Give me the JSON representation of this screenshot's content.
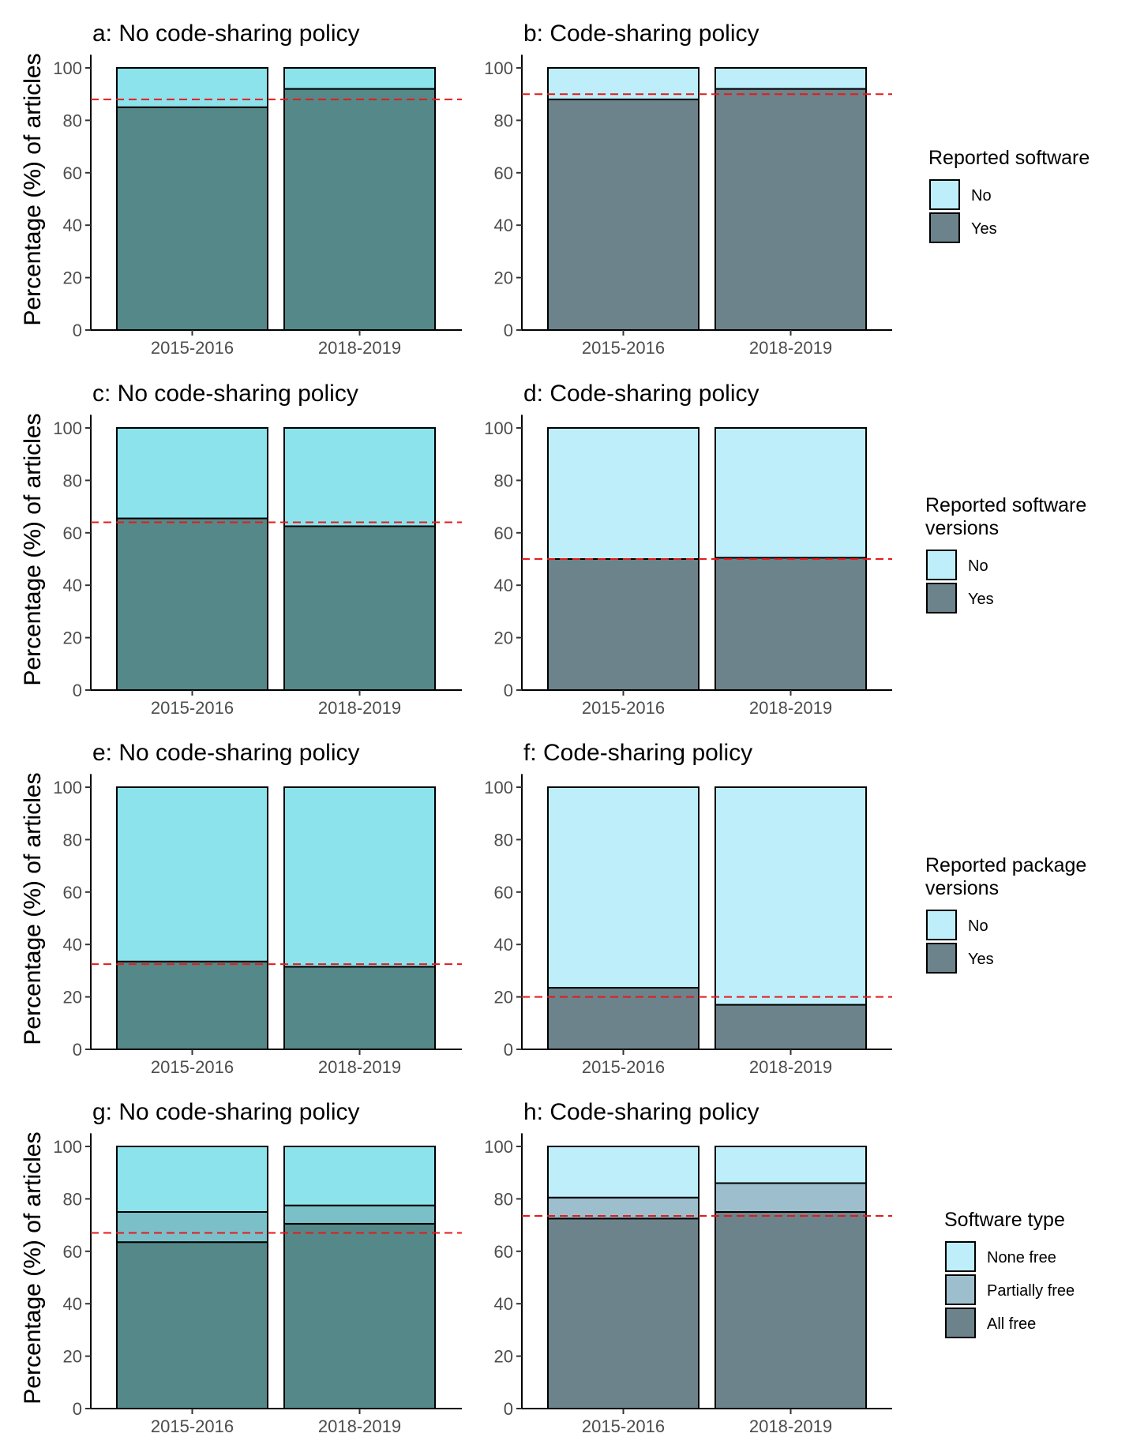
{
  "figure": {
    "ylabel": "Percentage (%) of articles",
    "categories": [
      "2015-2016",
      "2018-2019"
    ],
    "yticks": [
      0,
      20,
      40,
      60,
      80,
      100
    ]
  },
  "colors": {
    "no_policy_yes": "#558888",
    "no_policy_no": "#8de3ec",
    "policy_yes": "#6c838b",
    "policy_no": "#bfeefb",
    "no_policy_partial": "#7bbfc8",
    "policy_partial": "#9dbfcd",
    "reference_line": "#e41a1c",
    "bar_outline": "#000000"
  },
  "legends": [
    {
      "title_lines": [
        "Reported software"
      ],
      "items": [
        {
          "label": "No",
          "color": "#bfeefb"
        },
        {
          "label": "Yes",
          "color": "#6c838b"
        }
      ]
    },
    {
      "title_lines": [
        "Reported software",
        "versions"
      ],
      "items": [
        {
          "label": "No",
          "color": "#bfeefb"
        },
        {
          "label": "Yes",
          "color": "#6c838b"
        }
      ]
    },
    {
      "title_lines": [
        "Reported package",
        "versions"
      ],
      "items": [
        {
          "label": "No",
          "color": "#bfeefb"
        },
        {
          "label": "Yes",
          "color": "#6c838b"
        }
      ]
    },
    {
      "title_lines": [
        "Software type"
      ],
      "items": [
        {
          "label": "None free",
          "color": "#bfeefb"
        },
        {
          "label": "Partially free",
          "color": "#9dbfcd"
        },
        {
          "label": "All free",
          "color": "#6c838b"
        }
      ]
    }
  ],
  "chart_data": [
    {
      "panel": "a",
      "title": "a: No code-sharing policy",
      "type": "bar",
      "stacked": true,
      "categories": [
        "2015-2016",
        "2018-2019"
      ],
      "ylim": [
        0,
        100
      ],
      "reference_line": 88,
      "series": [
        {
          "name": "Yes",
          "values": [
            85,
            92
          ]
        },
        {
          "name": "No",
          "values": [
            15,
            8
          ]
        }
      ]
    },
    {
      "panel": "b",
      "title": "b: Code-sharing policy",
      "type": "bar",
      "stacked": true,
      "categories": [
        "2015-2016",
        "2018-2019"
      ],
      "ylim": [
        0,
        100
      ],
      "reference_line": 90,
      "series": [
        {
          "name": "Yes",
          "values": [
            88,
            92
          ]
        },
        {
          "name": "No",
          "values": [
            12,
            8
          ]
        }
      ]
    },
    {
      "panel": "c",
      "title": "c: No code-sharing policy",
      "type": "bar",
      "stacked": true,
      "categories": [
        "2015-2016",
        "2018-2019"
      ],
      "ylim": [
        0,
        100
      ],
      "reference_line": 64,
      "series": [
        {
          "name": "Yes",
          "values": [
            65.5,
            62.5
          ]
        },
        {
          "name": "No",
          "values": [
            34.5,
            37.5
          ]
        }
      ]
    },
    {
      "panel": "d",
      "title": "d: Code-sharing policy",
      "type": "bar",
      "stacked": true,
      "categories": [
        "2015-2016",
        "2018-2019"
      ],
      "ylim": [
        0,
        100
      ],
      "reference_line": 50,
      "series": [
        {
          "name": "Yes",
          "values": [
            50,
            50.5
          ]
        },
        {
          "name": "No",
          "values": [
            50,
            49.5
          ]
        }
      ]
    },
    {
      "panel": "e",
      "title": "e: No code-sharing policy",
      "type": "bar",
      "stacked": true,
      "categories": [
        "2015-2016",
        "2018-2019"
      ],
      "ylim": [
        0,
        100
      ],
      "reference_line": 32.5,
      "series": [
        {
          "name": "Yes",
          "values": [
            33.5,
            31.5
          ]
        },
        {
          "name": "No",
          "values": [
            66.5,
            68.5
          ]
        }
      ]
    },
    {
      "panel": "f",
      "title": "f: Code-sharing policy",
      "type": "bar",
      "stacked": true,
      "categories": [
        "2015-2016",
        "2018-2019"
      ],
      "ylim": [
        0,
        100
      ],
      "reference_line": 20,
      "series": [
        {
          "name": "Yes",
          "values": [
            23.5,
            17
          ]
        },
        {
          "name": "No",
          "values": [
            76.5,
            83
          ]
        }
      ]
    },
    {
      "panel": "g",
      "title": "g: No code-sharing policy",
      "type": "bar",
      "stacked": true,
      "categories": [
        "2015-2016",
        "2018-2019"
      ],
      "ylim": [
        0,
        100
      ],
      "reference_line": 67,
      "series": [
        {
          "name": "All free",
          "values": [
            63.5,
            70.5
          ]
        },
        {
          "name": "Partially free",
          "values": [
            11.5,
            7
          ]
        },
        {
          "name": "None free",
          "values": [
            25,
            22.5
          ]
        }
      ]
    },
    {
      "panel": "h",
      "title": "h: Code-sharing policy",
      "type": "bar",
      "stacked": true,
      "categories": [
        "2015-2016",
        "2018-2019"
      ],
      "ylim": [
        0,
        100
      ],
      "reference_line": 73.5,
      "series": [
        {
          "name": "All free",
          "values": [
            72.5,
            75
          ]
        },
        {
          "name": "Partially free",
          "values": [
            8,
            11
          ]
        },
        {
          "name": "None free",
          "values": [
            19.5,
            14
          ]
        }
      ]
    }
  ]
}
